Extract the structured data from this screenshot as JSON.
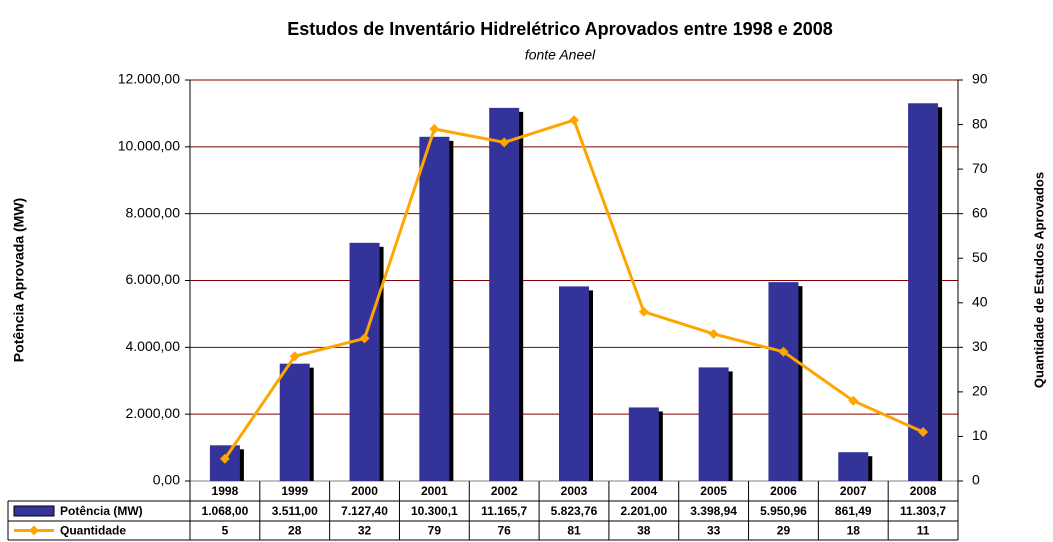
{
  "chart_data": {
    "type": "bar",
    "title": "Estudos de Inventário Hidrelétrico Aprovados entre 1998 e 2008",
    "subtitle": "fonte Aneel",
    "ylabel": "Potência Aprovada (MW)",
    "y2label": "Quantidade de Estudos Aprovados",
    "categories": [
      "1998",
      "1999",
      "2000",
      "2001",
      "2002",
      "2003",
      "2004",
      "2005",
      "2006",
      "2007",
      "2008"
    ],
    "series": [
      {
        "name": "Potência (MW)",
        "type": "bar",
        "color": "#333399",
        "values": [
          1068,
          3511,
          7127.4,
          10300.1,
          11165.7,
          5823.76,
          2201,
          3398.94,
          5950.96,
          861.49,
          11303.7
        ],
        "value_labels": [
          "1.068,00",
          "3.511,00",
          "7.127,40",
          "10.300,1",
          "11.165,7",
          "5.823,76",
          "2.201,00",
          "3.398,94",
          "5.950,96",
          "861,49",
          "11.303,7"
        ]
      },
      {
        "name": "Quantidade",
        "type": "line",
        "color": "#FFA500",
        "axis": "y2",
        "values": [
          5,
          28,
          32,
          79,
          76,
          81,
          38,
          33,
          29,
          18,
          11
        ]
      }
    ],
    "ylim": [
      0,
      12000
    ],
    "yticks": [
      {
        "value": 0,
        "label": "0,00"
      },
      {
        "value": 2000,
        "label": "2.000,00"
      },
      {
        "value": 4000,
        "label": "4.000,00"
      },
      {
        "value": 6000,
        "label": "6.000,00"
      },
      {
        "value": 8000,
        "label": "8.000,00"
      },
      {
        "value": 10000,
        "label": "10.000,00"
      },
      {
        "value": 12000,
        "label": "12.000,00"
      }
    ],
    "y2lim": [
      0,
      90
    ],
    "y2ticks": [
      0,
      10,
      20,
      30,
      40,
      50,
      60,
      70,
      80,
      90
    ],
    "grid": true,
    "grid_color": "#800000",
    "data_table": true
  }
}
